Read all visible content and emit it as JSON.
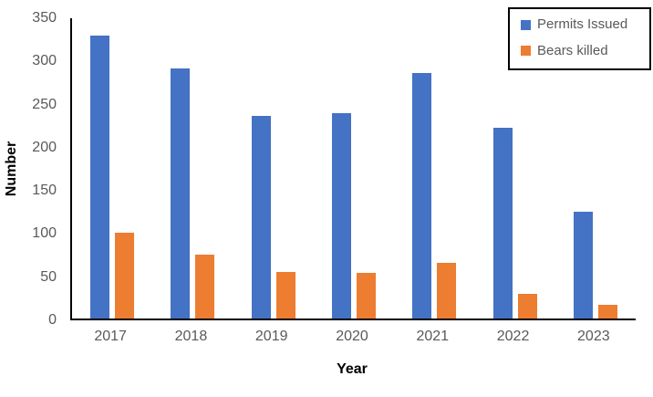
{
  "chart_data": {
    "type": "bar",
    "title": "",
    "xlabel": "Year",
    "ylabel": "Number",
    "categories": [
      "2017",
      "2018",
      "2019",
      "2020",
      "2021",
      "2022",
      "2023"
    ],
    "series": [
      {
        "name": "Permits Issued",
        "color": "#4472C4",
        "values": [
          330,
          292,
          236,
          239,
          286,
          222,
          125
        ]
      },
      {
        "name": "Bears killed",
        "color": "#ED7D31",
        "values": [
          100,
          74,
          54,
          53,
          65,
          29,
          16
        ]
      }
    ],
    "ylim": [
      0,
      350
    ],
    "y_ticks": [
      0,
      50,
      100,
      150,
      200,
      250,
      300,
      350
    ],
    "grid": false,
    "legend_position": "top-right"
  },
  "colors": {
    "axis_line": "#000000",
    "tick_label": "#595959",
    "axis_title": "#000000",
    "legend_border": "#000000",
    "background": "#ffffff"
  }
}
